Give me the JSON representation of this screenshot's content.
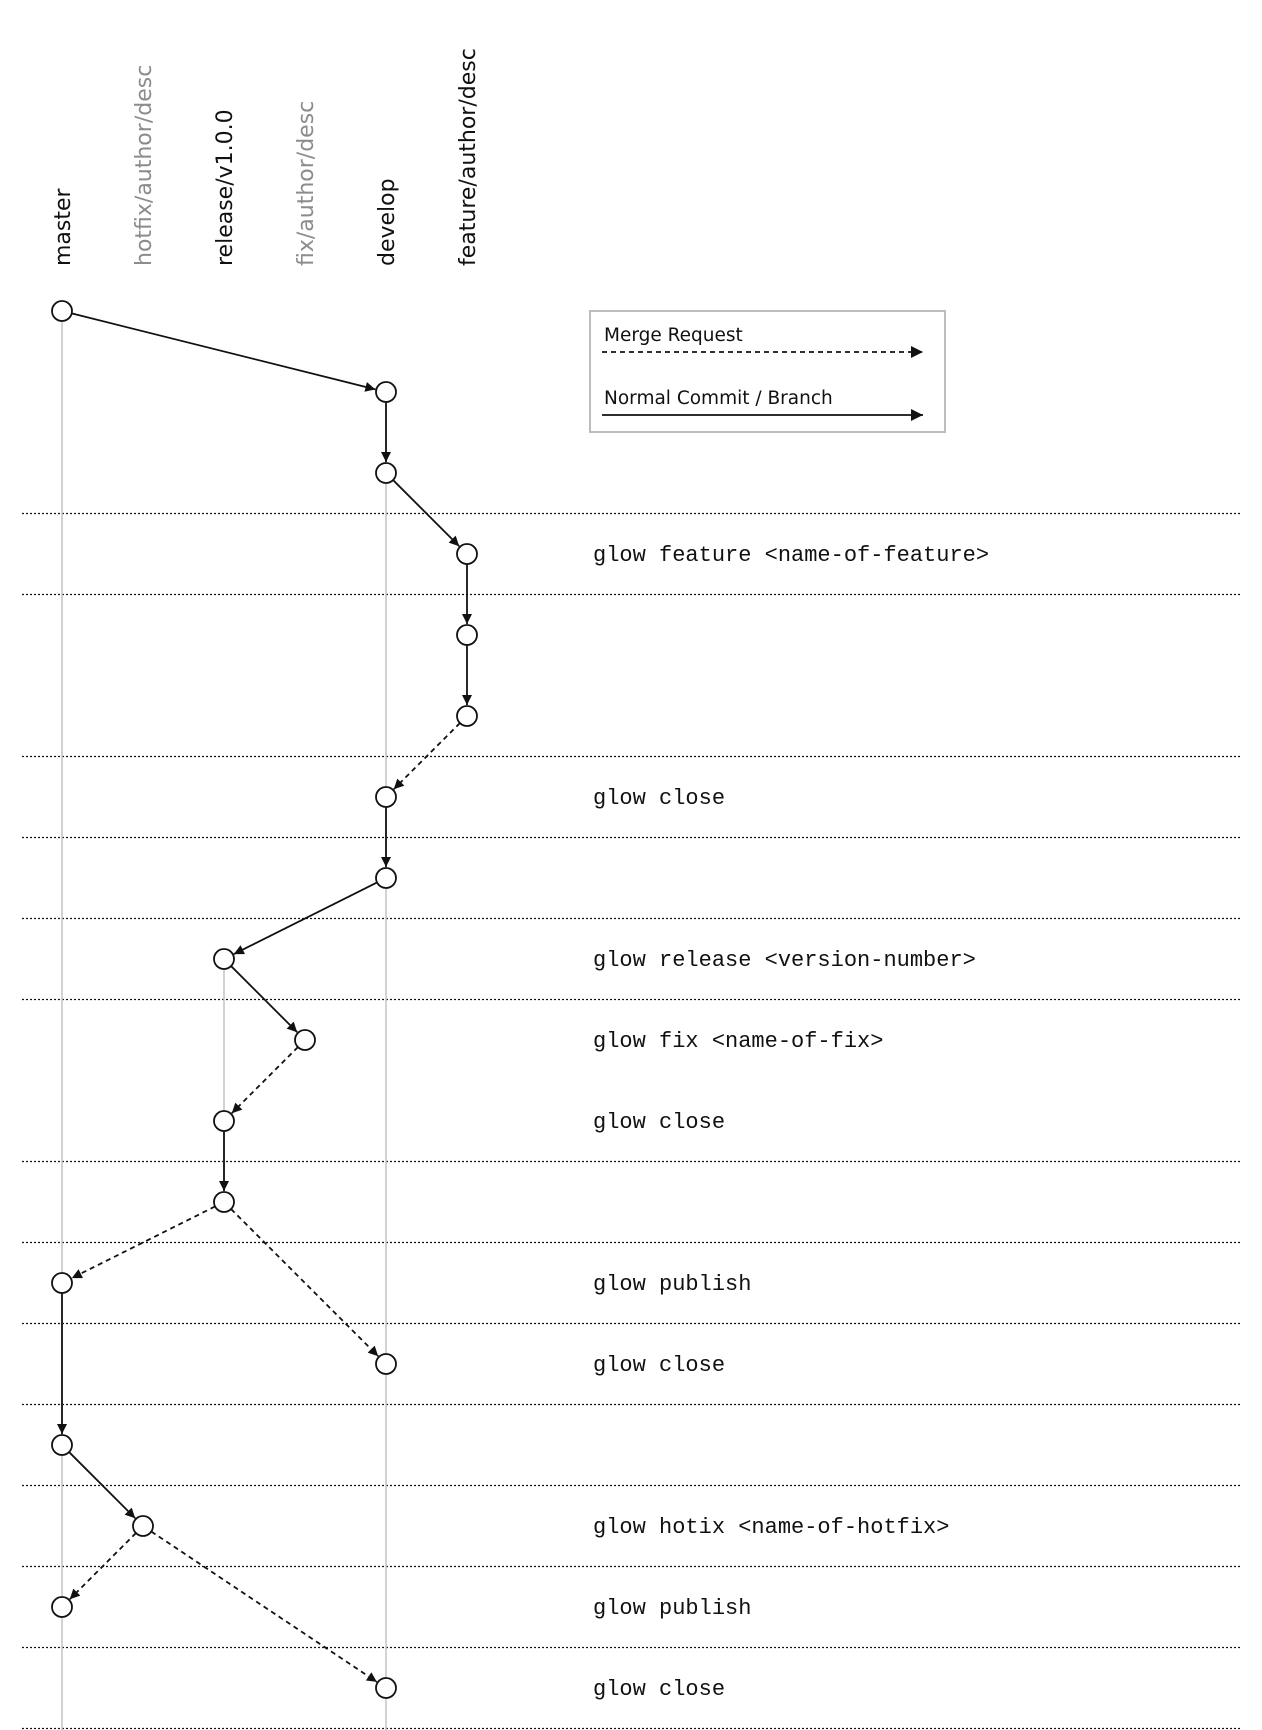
{
  "branches": [
    {
      "id": "master",
      "label": "master",
      "color": "#111111",
      "lifeline": true
    },
    {
      "id": "hotfix",
      "label": "hotfix/author/desc",
      "color": "#8c8c8c",
      "lifeline": false
    },
    {
      "id": "release",
      "label": "release/v1.0.0",
      "color": "#111111",
      "lifeline": true
    },
    {
      "id": "fix",
      "label": "fix/author/desc",
      "color": "#8c8c8c",
      "lifeline": false
    },
    {
      "id": "develop",
      "label": "develop",
      "color": "#111111",
      "lifeline": true
    },
    {
      "id": "feature",
      "label": "feature/author/desc",
      "color": "#111111",
      "lifeline": false
    }
  ],
  "legend": {
    "merge_request_label": "Merge Request",
    "normal_commit_label": "Normal Commit / Branch"
  },
  "commits": [
    {
      "id": "c1",
      "branch": "master",
      "row": 0
    },
    {
      "id": "c2",
      "branch": "develop",
      "row": 1
    },
    {
      "id": "c3",
      "branch": "develop",
      "row": 2
    },
    {
      "id": "c4",
      "branch": "feature",
      "row": 3
    },
    {
      "id": "c5",
      "branch": "feature",
      "row": 4
    },
    {
      "id": "c6",
      "branch": "feature",
      "row": 5
    },
    {
      "id": "c7",
      "branch": "develop",
      "row": 6
    },
    {
      "id": "c8",
      "branch": "develop",
      "row": 7
    },
    {
      "id": "c9",
      "branch": "release",
      "row": 8
    },
    {
      "id": "c10",
      "branch": "fix",
      "row": 9
    },
    {
      "id": "c11",
      "branch": "release",
      "row": 10
    },
    {
      "id": "c12",
      "branch": "release",
      "row": 11
    },
    {
      "id": "c13",
      "branch": "master",
      "row": 12
    },
    {
      "id": "c14",
      "branch": "develop",
      "row": 13
    },
    {
      "id": "c15",
      "branch": "master",
      "row": 14
    },
    {
      "id": "c16",
      "branch": "hotfix",
      "row": 15
    },
    {
      "id": "c17",
      "branch": "master",
      "row": 16
    },
    {
      "id": "c18",
      "branch": "develop",
      "row": 17
    }
  ],
  "edges": [
    {
      "from": "c1",
      "to": "c2",
      "type": "solid"
    },
    {
      "from": "c2",
      "to": "c3",
      "type": "solid"
    },
    {
      "from": "c3",
      "to": "c4",
      "type": "solid"
    },
    {
      "from": "c4",
      "to": "c5",
      "type": "solid"
    },
    {
      "from": "c5",
      "to": "c6",
      "type": "solid"
    },
    {
      "from": "c6",
      "to": "c7",
      "type": "dashed"
    },
    {
      "from": "c7",
      "to": "c8",
      "type": "solid"
    },
    {
      "from": "c8",
      "to": "c9",
      "type": "solid"
    },
    {
      "from": "c9",
      "to": "c10",
      "type": "solid"
    },
    {
      "from": "c10",
      "to": "c11",
      "type": "dashed"
    },
    {
      "from": "c11",
      "to": "c12",
      "type": "solid"
    },
    {
      "from": "c12",
      "to": "c13",
      "type": "dashed"
    },
    {
      "from": "c12",
      "to": "c14",
      "type": "dashed"
    },
    {
      "from": "c13",
      "to": "c15",
      "type": "solid"
    },
    {
      "from": "c15",
      "to": "c16",
      "type": "solid"
    },
    {
      "from": "c16",
      "to": "c17",
      "type": "dashed"
    },
    {
      "from": "c16",
      "to": "c18",
      "type": "dashed"
    }
  ],
  "commands": [
    {
      "row": 3,
      "text": "glow feature <name-of-feature>"
    },
    {
      "row": 6,
      "text": "glow close"
    },
    {
      "row": 8,
      "text": "glow release <version-number>"
    },
    {
      "row": 9,
      "text": "glow fix <name-of-fix>"
    },
    {
      "row": 10,
      "text": "glow close"
    },
    {
      "row": 12,
      "text": "glow publish"
    },
    {
      "row": 13,
      "text": "glow close"
    },
    {
      "row": 15,
      "text": "glow hotix <name-of-hotfix>"
    },
    {
      "row": 16,
      "text": "glow publish"
    },
    {
      "row": 17,
      "text": "glow close"
    }
  ],
  "separators_after_rows": [
    2,
    3,
    5,
    6,
    7,
    8,
    10,
    11,
    12,
    13,
    14,
    15,
    16,
    17
  ]
}
